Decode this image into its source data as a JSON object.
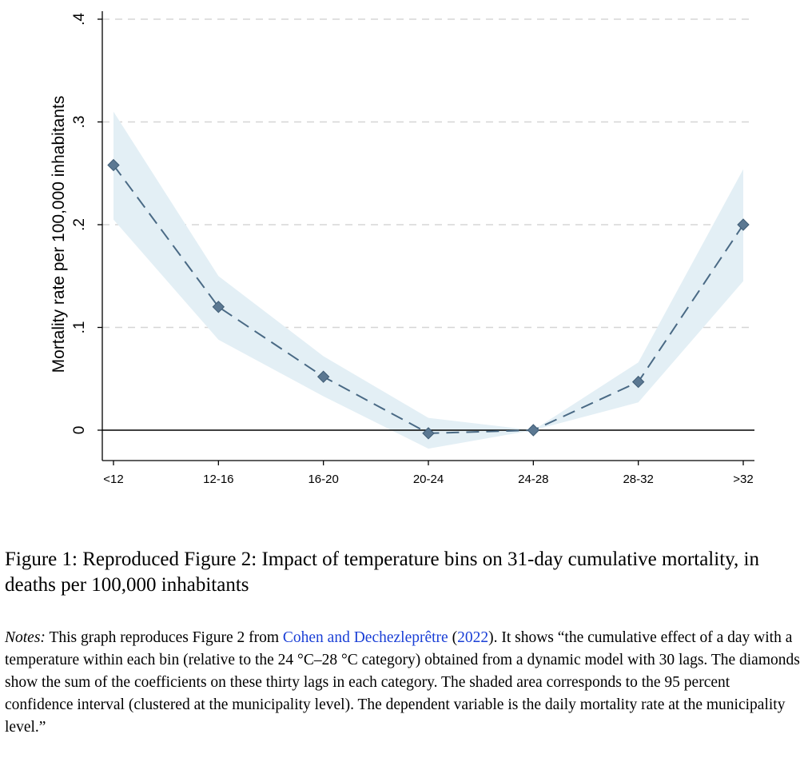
{
  "chart_data": {
    "type": "line",
    "title": "",
    "xlabel": "",
    "ylabel": "Mortality rate per 100,000 inhabitants",
    "categories": [
      "<12",
      "12-16",
      "16-20",
      "20-24",
      "24-28",
      "28-32",
      ">32"
    ],
    "series": [
      {
        "values": [
          0.258,
          0.12,
          0.052,
          -0.003,
          0.0,
          0.047,
          0.2
        ],
        "ci_lower": [
          0.205,
          0.088,
          0.033,
          -0.018,
          0.0,
          0.027,
          0.145
        ],
        "ci_upper": [
          0.31,
          0.15,
          0.072,
          0.012,
          0.0,
          0.066,
          0.254
        ]
      }
    ],
    "ylim": [
      -0.03,
      0.4
    ],
    "yticks": [
      0,
      0.1,
      0.2,
      0.3,
      0.4
    ],
    "ytick_labels": [
      "0",
      ".1",
      ".2",
      ".3",
      ".4"
    ],
    "grid": true,
    "legend": "none",
    "colors": {
      "line": "#4a6a85",
      "marker": "#5b7892",
      "band": "#e3eff5",
      "grid": "#d6d6d6"
    }
  },
  "caption": {
    "label": "Figure 1:",
    "text": "Reproduced Figure 2: Impact of temperature bins on 31-day cumulative mortality, in deaths per 100,000 inhabitants"
  },
  "notes": {
    "label": "Notes:",
    "text_1": "This graph reproduces Figure 2 from",
    "cite_authors": "Cohen and Dechezleprêtre",
    "cite_open": "(",
    "cite_year": "2022",
    "cite_close": ")",
    "text_2": ". It shows “the cumulative effect of a day with a temperature within each bin (relative to the 24 °C–28 °C category) obtained from a dynamic model with 30 lags. The diamonds show the sum of the coefficients on these thirty lags in each category. The shaded area corresponds to the 95 percent confidence interval (clustered at the municipality level). The dependent variable is the daily mortality rate at the municipality level.”"
  }
}
